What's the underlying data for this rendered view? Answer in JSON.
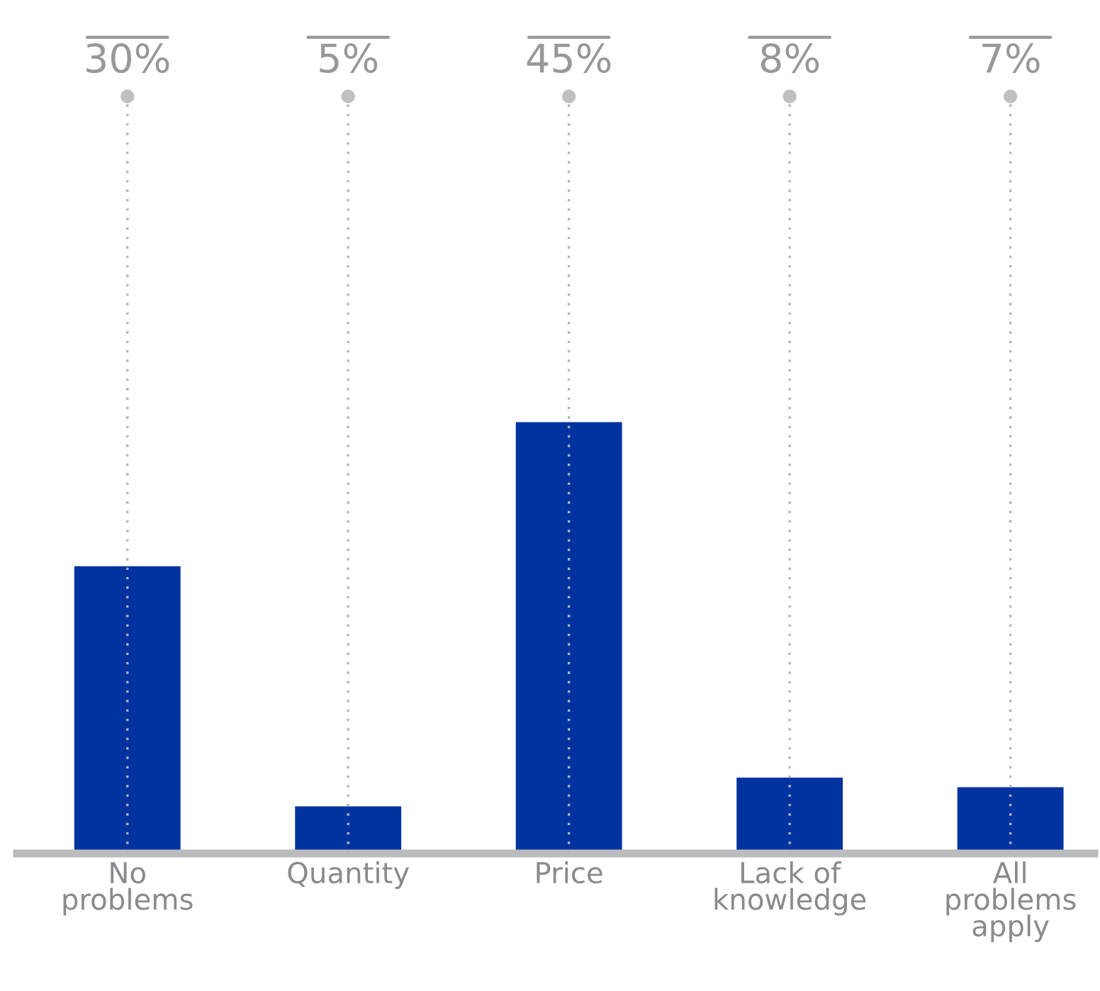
{
  "chart_data": {
    "type": "bar",
    "categories": [
      "No\nproblems",
      "Quantity",
      "Price",
      "Lack of\nknowledge",
      "All\nproblems\napply"
    ],
    "values": [
      30,
      5,
      45,
      8,
      7
    ],
    "color": "#0033a0",
    "value_labels": [
      "30%",
      "5%",
      "45%",
      "8%",
      "7%"
    ],
    "grid": "x",
    "legend": false
  }
}
